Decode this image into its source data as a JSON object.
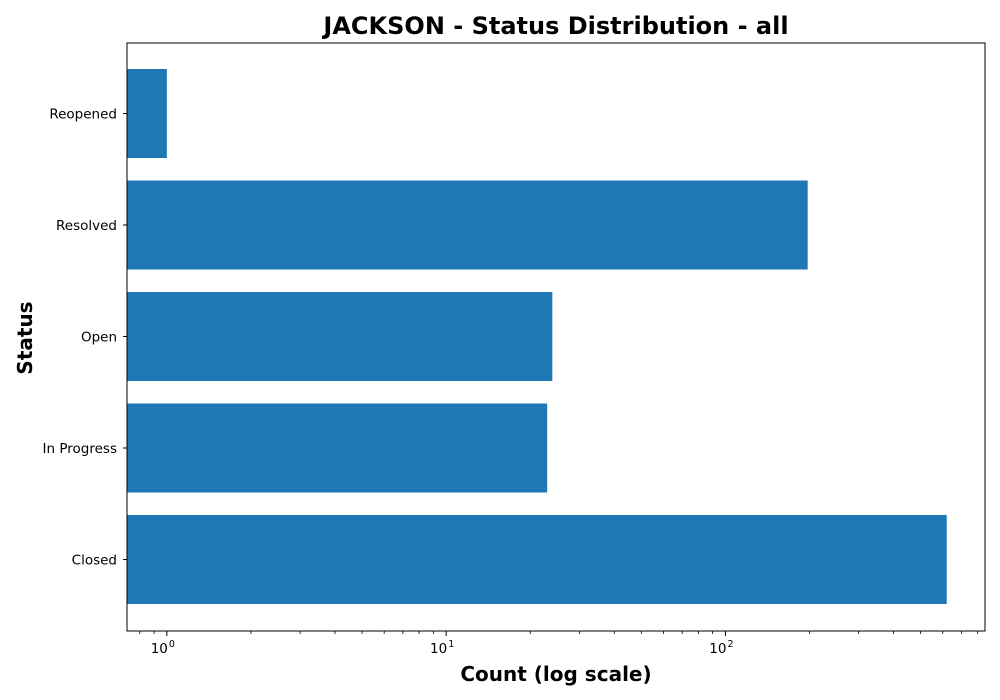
{
  "chart_data": {
    "type": "bar",
    "orientation": "horizontal",
    "title": "JACKSON - Status Distribution - all",
    "xlabel": "Count (log scale)",
    "ylabel": "Status",
    "x_scale": "log",
    "xlim": [
      0.72,
      850
    ],
    "x_ticks": [
      {
        "value": 1,
        "base": "10",
        "exp": "0"
      },
      {
        "value": 10,
        "base": "10",
        "exp": "1"
      },
      {
        "value": 100,
        "base": "10",
        "exp": "2"
      }
    ],
    "categories": [
      "Closed",
      "In Progress",
      "Open",
      "Resolved",
      "Reopened"
    ],
    "values": [
      620,
      23,
      24,
      197,
      1
    ],
    "bar_color": "#1f77b4",
    "grid": false
  }
}
